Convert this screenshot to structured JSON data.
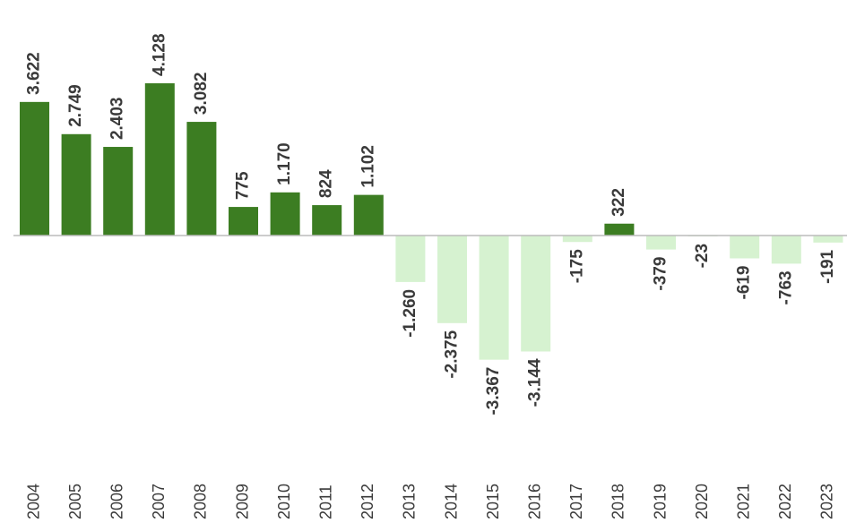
{
  "chart_data": {
    "type": "bar",
    "categories": [
      "2004",
      "2005",
      "2006",
      "2007",
      "2008",
      "2009",
      "2010",
      "2011",
      "2012",
      "2013",
      "2014",
      "2015",
      "2016",
      "2017",
      "2018",
      "2019",
      "2020",
      "2021",
      "2022",
      "2023"
    ],
    "values": [
      3622,
      2749,
      2403,
      4128,
      3082,
      775,
      1170,
      824,
      1102,
      -1260,
      -2375,
      -3367,
      -3144,
      -175,
      322,
      -379,
      -23,
      -619,
      -763,
      -191
    ],
    "value_labels": [
      "3.622",
      "2.749",
      "2.403",
      "4.128",
      "3.082",
      "775",
      "1.170",
      "824",
      "1.102",
      "-1.260",
      "-2.375",
      "-3.367",
      "-3.144",
      "-175",
      "322",
      "-379",
      "-23",
      "-619",
      "-763",
      "-191"
    ],
    "positive_color": "#3c7d22",
    "negative_color": "#d6f2d0"
  }
}
